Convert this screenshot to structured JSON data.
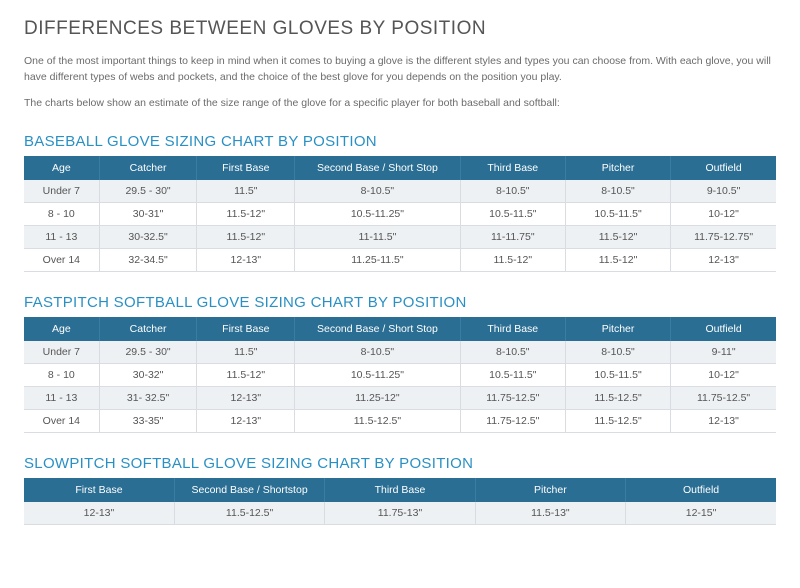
{
  "title": "DIFFERENCES BETWEEN GLOVES BY POSITION",
  "intro1": "One of the most important things to keep in mind when it comes to buying a glove is the different styles and types you can choose from. With each glove, you will have different types of webs and pockets, and the choice of the best glove for you depends on the position you play.",
  "intro2": "The charts below show an estimate of the size range of the glove for a specific player for both baseball and softball:",
  "tables": [
    {
      "title": "BASEBALL GLOVE SIZING CHART BY POSITION",
      "class": "sixcol",
      "columns": [
        "Age",
        "Catcher",
        "First Base",
        "Second Base / Short Stop",
        "Third Base",
        "Pitcher",
        "Outfield"
      ],
      "rows": [
        [
          "Under 7",
          "29.5 - 30\"",
          "11.5\"",
          "8-10.5\"",
          "8-10.5\"",
          "8-10.5\"",
          "9-10.5\""
        ],
        [
          "8 - 10",
          "30-31\"",
          "11.5-12\"",
          "10.5-11.25\"",
          "10.5-11.5\"",
          "10.5-11.5\"",
          "10-12\""
        ],
        [
          "11 - 13",
          "30-32.5\"",
          "11.5-12\"",
          "11-11.5\"",
          "11-11.75\"",
          "11.5-12\"",
          "11.75-12.75\""
        ],
        [
          "Over 14",
          "32-34.5\"",
          "12-13\"",
          "11.25-11.5\"",
          "11.5-12\"",
          "11.5-12\"",
          "12-13\""
        ]
      ]
    },
    {
      "title": "FASTPITCH SOFTBALL GLOVE SIZING CHART BY POSITION",
      "class": "sixcol",
      "columns": [
        "Age",
        "Catcher",
        "First Base",
        "Second Base / Short Stop",
        "Third Base",
        "Pitcher",
        "Outfield"
      ],
      "rows": [
        [
          "Under 7",
          "29.5 - 30\"",
          "11.5\"",
          "8-10.5\"",
          "8-10.5\"",
          "8-10.5\"",
          "9-11\""
        ],
        [
          "8 - 10",
          "30-32\"",
          "11.5-12\"",
          "10.5-11.25\"",
          "10.5-11.5\"",
          "10.5-11.5\"",
          "10-12\""
        ],
        [
          "11 - 13",
          "31- 32.5\"",
          "12-13\"",
          "11.25-12\"",
          "11.75-12.5\"",
          "11.5-12.5\"",
          "11.75-12.5\""
        ],
        [
          "Over 14",
          "33-35\"",
          "12-13\"",
          "11.5-12.5\"",
          "11.75-12.5\"",
          "11.5-12.5\"",
          "12-13\""
        ]
      ]
    },
    {
      "title": "SLOWPITCH SOFTBALL GLOVE SIZING CHART BY POSITION",
      "class": "slowpitch",
      "columns": [
        "First Base",
        "Second Base / Shortstop",
        "Third Base",
        "Pitcher",
        "Outfield"
      ],
      "rows": [
        [
          "12-13\"",
          "11.5-12.5\"",
          "11.75-13\"",
          "11.5-13\"",
          "12-15\""
        ]
      ]
    }
  ],
  "colors": {
    "header_bg": "#2b6e93",
    "header_text": "#ffffff",
    "chart_title": "#2a90c4",
    "row_odd": "#eef1f3",
    "row_even": "#ffffff",
    "border": "#d9dde1",
    "body_text": "#6b6b6b",
    "title_text": "#555555"
  }
}
